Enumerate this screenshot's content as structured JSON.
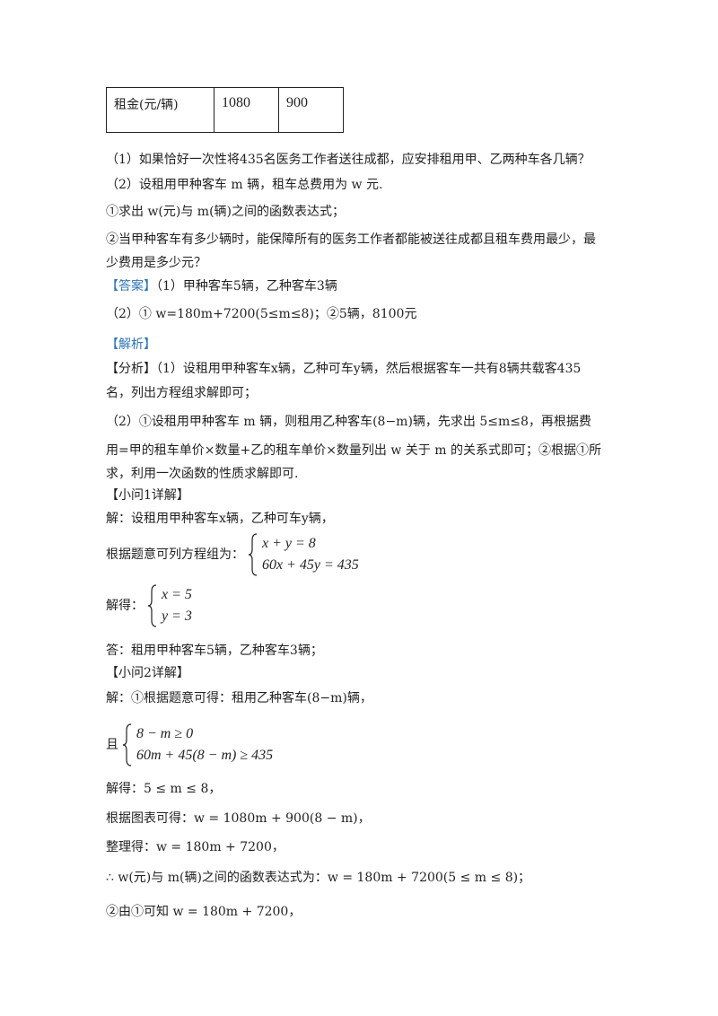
{
  "table": {
    "label": "租金(元/辆)",
    "jia": "1080",
    "yi": "900"
  },
  "q1": "（1）如果恰好一次性将435名医务工作者送往成都，应安排租用甲、乙两种车各几辆？",
  "q2": "（2）设租用甲种客车 m 辆，租车总费用为 w 元.",
  "q2a": "①求出 w(元)与 m(辆)之间的函数表达式；",
  "q2b1": "②当甲种客车有多少辆时，能保障所有的医务工作者都能被送往成都且租车费用最少，最",
  "q2b2": "少费用是多少元？",
  "answer_tag": "【答案】",
  "ans1": "（1）甲种客车5辆，乙种客车3辆",
  "ans2": "（2）① w=180m+7200(5≤m≤8)；②5辆，8100元",
  "analysis_tag": "【解析】",
  "an1": "【分析】（1）设租用甲种客车x辆，乙种可车y辆，然后根据客车一共有8辆共载客435",
  "an2": "名，列出方程组求解即可；",
  "an3": "（2）①设租用甲种客车 m 辆，则租用乙种客车(8−m)辆，先求出 5≤m≤8，再根据费",
  "an4": "用=甲的租车单价×数量+乙的租车单价×数量列出 w 关于 m 的关系式即可；②根据①所",
  "an5": "求，利用一次函数的性质求解即可.",
  "s1_title": "【小问1详解】",
  "s1_l1": "解：设租用甲种客车x辆，乙种可车y辆，",
  "s1_l2": "根据题意可列方程组为：",
  "s1_eq1": "x + y = 8",
  "s1_eq2": "60x + 45y = 435",
  "s1_l3": "解得：",
  "s1_sol1": "x = 5",
  "s1_sol2": "y = 3",
  "s1_l4": "答：租用甲种客车5辆，乙种客车3辆；",
  "s2_title": "【小问2详解】",
  "s2_l1": "解：①根据题意可得：租用乙种客车(8−m)辆，",
  "s2_l2": "且",
  "s2_eq1": "8 − m ≥ 0",
  "s2_eq2": "60m + 45(8 − m) ≥ 435",
  "s2_l3": "解得：5 ≤ m ≤ 8，",
  "s2_l4": "根据图表可得：w = 1080m + 900(8 − m)，",
  "s2_l5": "整理得：w = 180m + 7200，",
  "s2_l6": "∴ w(元)与 m(辆)之间的函数表达式为：w = 180m + 7200(5 ≤ m ≤ 8)；",
  "s2_l7": "②由①可知 w = 180m + 7200，"
}
